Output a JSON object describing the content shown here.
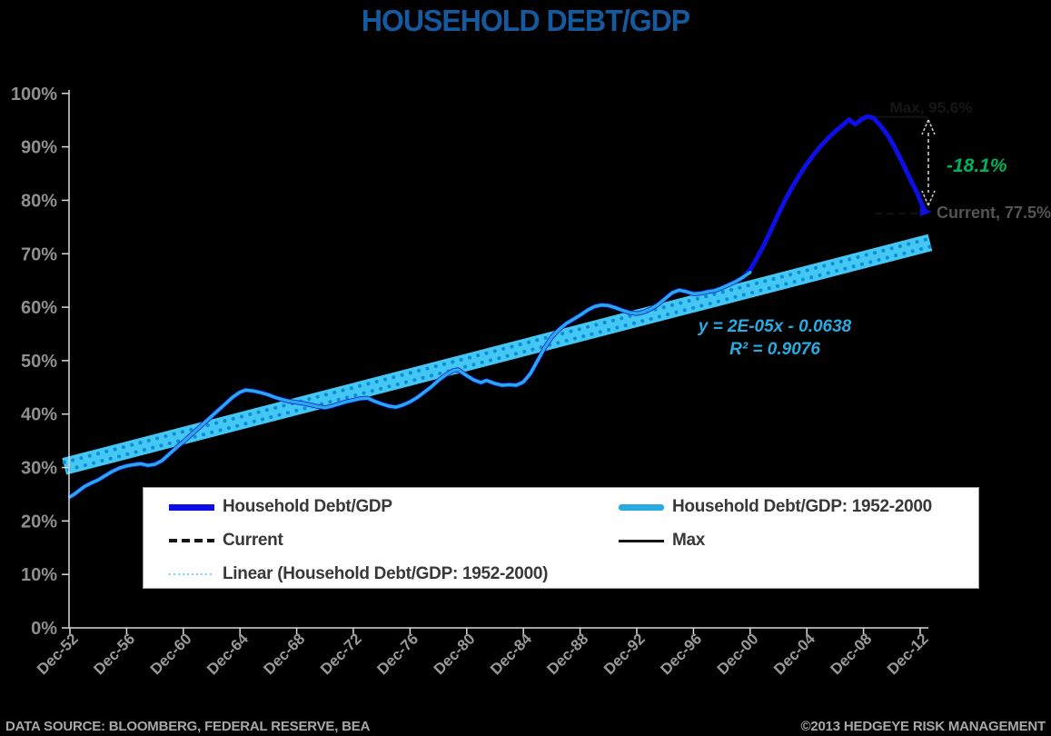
{
  "title": "HOUSEHOLD DEBT/GDP",
  "footer": {
    "source": "DATA SOURCE: BLOOMBERG, FEDERAL RESERVE, BEA",
    "copyright": "©2013 HEDGEYE RISK MANAGEMENT"
  },
  "annotations": {
    "max": "Max, 95.6%",
    "delta": "-18.1%",
    "current": "Current, 77.5%",
    "equation": "y = 2E-05x - 0.0638",
    "r_squared": "R² = 0.9076"
  },
  "legend": {
    "items": [
      {
        "label": "Household Debt/GDP",
        "swatch": "blue-thick"
      },
      {
        "label": "Current",
        "swatch": "black-dashed"
      },
      {
        "label": "Linear (Household Debt/GDP: 1952-2000)",
        "swatch": "cyan-dotted"
      },
      {
        "label": "Household Debt/GDP: 1952-2000",
        "swatch": "cyan-thick"
      },
      {
        "label": "Max",
        "swatch": "black-solid"
      }
    ]
  },
  "colors": {
    "background": "#000000",
    "title_blue": "#15599F",
    "series_blue": "#0E0EE6",
    "series_cyan": "#29ABE2",
    "trend_band": "#45C7F5",
    "trend_dots": "#0C8FD0",
    "green": "#00B25E",
    "gray_axis_text": "#8F8F8F",
    "gray_annotation": "#545454",
    "near_black": "#161616",
    "axis_line": "#D9D9D9"
  },
  "chart_data": {
    "type": "line",
    "title": "HOUSEHOLD DEBT/GDP",
    "xlabel": "",
    "ylabel": "",
    "ylim": [
      0,
      100
    ],
    "grid": false,
    "legend_position": "bottom-inside",
    "y_ticks": [
      {
        "value": 0,
        "label": "0%"
      },
      {
        "value": 10,
        "label": "10%"
      },
      {
        "value": 20,
        "label": "20%"
      },
      {
        "value": 30,
        "label": "30%"
      },
      {
        "value": 40,
        "label": "40%"
      },
      {
        "value": 50,
        "label": "50%"
      },
      {
        "value": 60,
        "label": "60%"
      },
      {
        "value": 70,
        "label": "70%"
      },
      {
        "value": 80,
        "label": "80%"
      },
      {
        "value": 90,
        "label": "90%"
      },
      {
        "value": 100,
        "label": "100%"
      }
    ],
    "x_ticks": [
      {
        "year": 1952,
        "label": "Dec-52"
      },
      {
        "year": 1956,
        "label": "Dec-56"
      },
      {
        "year": 1960,
        "label": "Dec-60"
      },
      {
        "year": 1964,
        "label": "Dec-64"
      },
      {
        "year": 1968,
        "label": "Dec-68"
      },
      {
        "year": 1972,
        "label": "Dec-72"
      },
      {
        "year": 1976,
        "label": "Dec-76"
      },
      {
        "year": 1980,
        "label": "Dec-80"
      },
      {
        "year": 1984,
        "label": "Dec-84"
      },
      {
        "year": 1988,
        "label": "Dec-88"
      },
      {
        "year": 1992,
        "label": "Dec-92"
      },
      {
        "year": 1996,
        "label": "Dec-96"
      },
      {
        "year": 2000,
        "label": "Dec-00"
      },
      {
        "year": 2004,
        "label": "Dec-04"
      },
      {
        "year": 2008,
        "label": "Dec-08"
      },
      {
        "year": 2012,
        "label": "Dec-12"
      }
    ],
    "key_values": {
      "max_pct": 95.6,
      "current_pct": 77.5,
      "delta_pct": -18.1
    },
    "series": [
      {
        "name": "Household Debt/GDP",
        "color": "#0E0EE6",
        "width": 5,
        "points": [
          [
            1952,
            24.5
          ],
          [
            1952.3,
            25
          ],
          [
            1952.6,
            25.6
          ],
          [
            1953,
            26.4
          ],
          [
            1953.5,
            27.1
          ],
          [
            1954,
            27.7
          ],
          [
            1954.5,
            28.5
          ],
          [
            1955,
            29.3
          ],
          [
            1955.5,
            29.9
          ],
          [
            1956,
            30.3
          ],
          [
            1956.4,
            30.5
          ],
          [
            1957,
            30.7
          ],
          [
            1957.5,
            30.4
          ],
          [
            1958,
            30.6
          ],
          [
            1958.5,
            31.3
          ],
          [
            1959,
            32.5
          ],
          [
            1959.5,
            33.7
          ],
          [
            1960,
            34.8
          ],
          [
            1960.5,
            36
          ],
          [
            1961,
            37.2
          ],
          [
            1961.5,
            38.4
          ],
          [
            1962,
            39.6
          ],
          [
            1962.5,
            40.8
          ],
          [
            1963,
            42
          ],
          [
            1963.5,
            43.2
          ],
          [
            1964,
            44.1
          ],
          [
            1964.4,
            44.5
          ],
          [
            1965,
            44.3
          ],
          [
            1965.5,
            44
          ],
          [
            1966,
            43.6
          ],
          [
            1966.5,
            43.1
          ],
          [
            1967,
            42.7
          ],
          [
            1967.5,
            42.4
          ],
          [
            1968,
            42.2
          ],
          [
            1968.5,
            42
          ],
          [
            1969,
            41.7
          ],
          [
            1969.5,
            41.4
          ],
          [
            1970,
            41.2
          ],
          [
            1970.5,
            41.5
          ],
          [
            1971,
            41.9
          ],
          [
            1971.5,
            42.3
          ],
          [
            1972,
            42.6
          ],
          [
            1972.5,
            42.9
          ],
          [
            1973,
            43
          ],
          [
            1973.5,
            42.4
          ],
          [
            1974,
            41.9
          ],
          [
            1974.5,
            41.5
          ],
          [
            1975,
            41.3
          ],
          [
            1975.5,
            41.7
          ],
          [
            1976,
            42.3
          ],
          [
            1976.5,
            43.1
          ],
          [
            1977,
            44.1
          ],
          [
            1977.5,
            45.1
          ],
          [
            1978,
            46.3
          ],
          [
            1978.5,
            47.3
          ],
          [
            1979,
            48.1
          ],
          [
            1979.4,
            48.3
          ],
          [
            1980,
            47.2
          ],
          [
            1980.5,
            46.4
          ],
          [
            1981,
            45.9
          ],
          [
            1981.4,
            46.3
          ],
          [
            1982,
            45.7
          ],
          [
            1982.5,
            45.4
          ],
          [
            1983,
            45.5
          ],
          [
            1983.5,
            45.4
          ],
          [
            1984,
            46
          ],
          [
            1984.5,
            47.6
          ],
          [
            1985,
            50
          ],
          [
            1985.5,
            52.4
          ],
          [
            1986,
            54.4
          ],
          [
            1986.5,
            55.8
          ],
          [
            1987,
            56.9
          ],
          [
            1987.5,
            57.7
          ],
          [
            1988,
            58.5
          ],
          [
            1988.5,
            59.4
          ],
          [
            1989,
            60.1
          ],
          [
            1989.5,
            60.4
          ],
          [
            1990,
            60.3
          ],
          [
            1990.5,
            59.9
          ],
          [
            1991,
            59.4
          ],
          [
            1991.5,
            59
          ],
          [
            1992,
            58.8
          ],
          [
            1992.5,
            59.1
          ],
          [
            1993,
            59.7
          ],
          [
            1993.5,
            60.5
          ],
          [
            1994,
            61.6
          ],
          [
            1994.5,
            62.7
          ],
          [
            1995,
            63.2
          ],
          [
            1995.5,
            62.9
          ],
          [
            1996,
            62.5
          ],
          [
            1996.5,
            62.6
          ],
          [
            1997,
            62.9
          ],
          [
            1997.5,
            63.1
          ],
          [
            1998,
            63.6
          ],
          [
            1998.5,
            64.2
          ],
          [
            1999,
            64.8
          ],
          [
            1999.5,
            65.6
          ],
          [
            2000,
            67
          ],
          [
            2000.5,
            69.3
          ],
          [
            2001,
            71.8
          ],
          [
            2001.5,
            74.6
          ],
          [
            2002,
            77.5
          ],
          [
            2002.5,
            80.2
          ],
          [
            2003,
            82.6
          ],
          [
            2003.5,
            84.8
          ],
          [
            2004,
            86.8
          ],
          [
            2004.5,
            88.6
          ],
          [
            2005,
            90.2
          ],
          [
            2005.5,
            91.6
          ],
          [
            2006,
            92.9
          ],
          [
            2006.5,
            94
          ],
          [
            2007,
            95.1
          ],
          [
            2007.4,
            94.2
          ],
          [
            2007.9,
            95.2
          ],
          [
            2008.3,
            95.7
          ],
          [
            2008.7,
            95.4
          ],
          [
            2009,
            94.6
          ],
          [
            2009.4,
            93.3
          ],
          [
            2009.8,
            91.8
          ],
          [
            2010.2,
            89.9
          ],
          [
            2010.6,
            87.8
          ],
          [
            2011,
            85.6
          ],
          [
            2011.4,
            83.4
          ],
          [
            2011.8,
            81.3
          ],
          [
            2012.1,
            79.3
          ],
          [
            2012.35,
            77.9
          ]
        ]
      },
      {
        "name": "Household Debt/GDP: 1952-2000",
        "color": "#29ABE2",
        "width": 3.5,
        "points": [
          [
            1952,
            24.5
          ],
          [
            1952.3,
            25
          ],
          [
            1952.6,
            25.6
          ],
          [
            1953,
            26.4
          ],
          [
            1953.5,
            27.1
          ],
          [
            1954,
            27.7
          ],
          [
            1954.5,
            28.5
          ],
          [
            1955,
            29.3
          ],
          [
            1955.5,
            29.9
          ],
          [
            1956,
            30.3
          ],
          [
            1956.4,
            30.5
          ],
          [
            1957,
            30.7
          ],
          [
            1957.5,
            30.4
          ],
          [
            1958,
            30.6
          ],
          [
            1958.5,
            31.3
          ],
          [
            1959,
            32.5
          ],
          [
            1959.5,
            33.7
          ],
          [
            1960,
            34.8
          ],
          [
            1960.5,
            36
          ],
          [
            1961,
            37.2
          ],
          [
            1961.5,
            38.4
          ],
          [
            1962,
            39.6
          ],
          [
            1962.5,
            40.8
          ],
          [
            1963,
            42
          ],
          [
            1963.5,
            43.2
          ],
          [
            1964,
            44.1
          ],
          [
            1964.4,
            44.5
          ],
          [
            1965,
            44.3
          ],
          [
            1965.5,
            44
          ],
          [
            1966,
            43.6
          ],
          [
            1966.5,
            43.1
          ],
          [
            1967,
            42.7
          ],
          [
            1967.5,
            42.4
          ],
          [
            1968,
            42.2
          ],
          [
            1968.5,
            42
          ],
          [
            1969,
            41.7
          ],
          [
            1969.5,
            41.4
          ],
          [
            1970,
            41.2
          ],
          [
            1970.5,
            41.5
          ],
          [
            1971,
            41.9
          ],
          [
            1971.5,
            42.3
          ],
          [
            1972,
            42.6
          ],
          [
            1972.5,
            42.9
          ],
          [
            1973,
            43
          ],
          [
            1973.5,
            42.4
          ],
          [
            1974,
            41.9
          ],
          [
            1974.5,
            41.5
          ],
          [
            1975,
            41.3
          ],
          [
            1975.5,
            41.7
          ],
          [
            1976,
            42.3
          ],
          [
            1976.5,
            43.1
          ],
          [
            1977,
            44.1
          ],
          [
            1977.5,
            45.1
          ],
          [
            1978,
            46.3
          ],
          [
            1978.5,
            47.3
          ],
          [
            1979,
            48.1
          ],
          [
            1979.4,
            48.3
          ],
          [
            1980,
            47.2
          ],
          [
            1980.5,
            46.4
          ],
          [
            1981,
            45.9
          ],
          [
            1981.4,
            46.3
          ],
          [
            1982,
            45.7
          ],
          [
            1982.5,
            45.4
          ],
          [
            1983,
            45.5
          ],
          [
            1983.5,
            45.4
          ],
          [
            1984,
            46
          ],
          [
            1984.5,
            47.6
          ],
          [
            1985,
            50
          ],
          [
            1985.5,
            52.4
          ],
          [
            1986,
            54.4
          ],
          [
            1986.5,
            55.8
          ],
          [
            1987,
            56.9
          ],
          [
            1987.5,
            57.7
          ],
          [
            1988,
            58.5
          ],
          [
            1988.5,
            59.4
          ],
          [
            1989,
            60.1
          ],
          [
            1989.5,
            60.4
          ],
          [
            1990,
            60.3
          ],
          [
            1990.5,
            59.9
          ],
          [
            1991,
            59.4
          ],
          [
            1991.5,
            59
          ],
          [
            1992,
            58.8
          ],
          [
            1992.5,
            59.1
          ],
          [
            1993,
            59.7
          ],
          [
            1993.5,
            60.5
          ],
          [
            1994,
            61.6
          ],
          [
            1994.5,
            62.7
          ],
          [
            1995,
            63.2
          ],
          [
            1995.5,
            62.9
          ],
          [
            1996,
            62.5
          ],
          [
            1996.5,
            62.6
          ],
          [
            1997,
            62.9
          ],
          [
            1997.5,
            63.1
          ],
          [
            1998,
            63.6
          ],
          [
            1998.5,
            64.2
          ],
          [
            1999,
            64.8
          ],
          [
            1999.5,
            65.6
          ],
          [
            2000,
            66.5
          ]
        ]
      },
      {
        "name": "Max",
        "type": "hline",
        "value": 95.6,
        "color": "#121212",
        "style": "solid",
        "x_range": [
          2007.6,
          2012.5
        ]
      },
      {
        "name": "Current",
        "type": "hline",
        "value": 77.5,
        "color": "#121212",
        "style": "dashed",
        "x_range": [
          2008.8,
          2012.5
        ]
      },
      {
        "name": "Linear (Household Debt/GDP: 1952-2000)",
        "type": "trend",
        "equation": "y = 2E-05x - 0.0638",
        "r_squared": 0.9076,
        "band_color": "#45C7F5",
        "dot_color": "#0C8FD0",
        "points": [
          [
            1951.6,
            30.2
          ],
          [
            2012.7,
            72.1
          ]
        ]
      }
    ]
  }
}
